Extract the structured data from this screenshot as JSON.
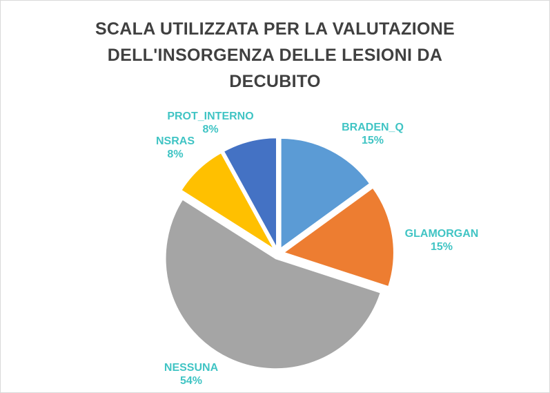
{
  "chart_data": {
    "type": "pie",
    "title_lines": [
      "SCALA UTILIZZATA PER LA VALUTAZIONE",
      "DELL'INSORGENZA DELLE LESIONI DA",
      "DECUBITO"
    ],
    "categories": [
      "BRADEN_Q",
      "GLAMORGAN",
      "NESSUNA",
      "NSRAS",
      "PROT_INTERNO"
    ],
    "values": [
      15,
      15,
      54,
      8,
      8
    ],
    "value_labels": [
      "15%",
      "15%",
      "54%",
      "8%",
      "8%"
    ],
    "colors": [
      "#5b9bd5",
      "#ed7d31",
      "#a5a5a5",
      "#ffc000",
      "#4472c4"
    ],
    "label_color": "#40c4c4",
    "exploded": true,
    "legend": "none"
  }
}
